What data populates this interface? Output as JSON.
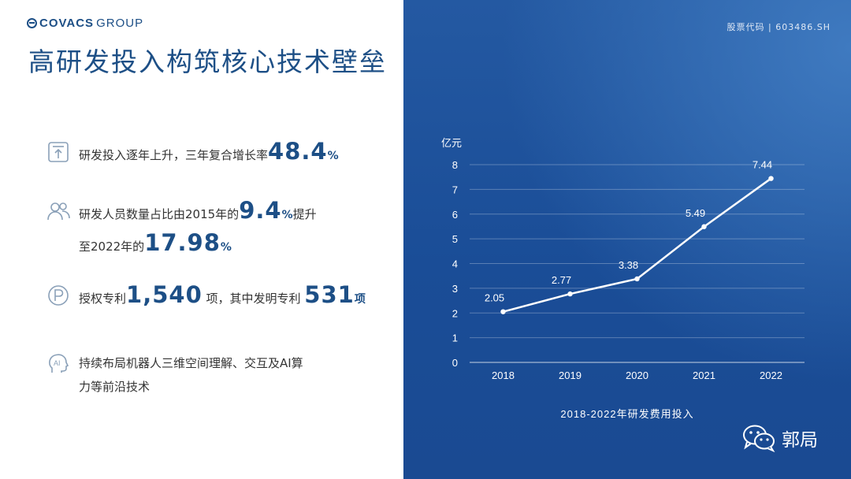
{
  "brand": {
    "logo_text_a": "COVACS",
    "logo_text_b": "GROUP"
  },
  "title": "高研发投入构筑核心技术壁垒",
  "stock_code": "股票代码 | 603486.SH",
  "items": [
    {
      "icon": "arrow-up-icon",
      "pre": "研发投入逐年上升，三年复合增长率",
      "big": "48.4",
      "unit": "%"
    },
    {
      "icon": "people-icon",
      "pre": "研发人员数量占比由2015年的",
      "big": "9.4",
      "unit": "%",
      "post": "提升",
      "line2_pre": "至2022年的",
      "line2_big": "17.98",
      "line2_unit": "%"
    },
    {
      "icon": "patent-p-icon",
      "pre": "授权专利",
      "big": "1,540",
      "mid": " 项，其中发明专利 ",
      "big2": "531",
      "unit": "项"
    },
    {
      "icon": "ai-head-icon",
      "line1": "持续布局机器人三维空间理解、交互及AI算",
      "line2": "力等前沿技术"
    }
  ],
  "chart_data": {
    "type": "line",
    "ylabel": "亿元",
    "caption": "2018-2022年研发费用投入",
    "categories": [
      "2018",
      "2019",
      "2020",
      "2021",
      "2022"
    ],
    "values": [
      2.05,
      2.77,
      3.38,
      5.49,
      7.44
    ],
    "labels": [
      "2.05",
      "2.77",
      "3.38",
      "5.49",
      "7.44"
    ],
    "ylim": [
      0,
      8
    ],
    "yticks": [
      "0",
      "1",
      "2",
      "3",
      "4",
      "5",
      "6",
      "7",
      "8"
    ],
    "grid": true
  },
  "watermark": "郭局"
}
